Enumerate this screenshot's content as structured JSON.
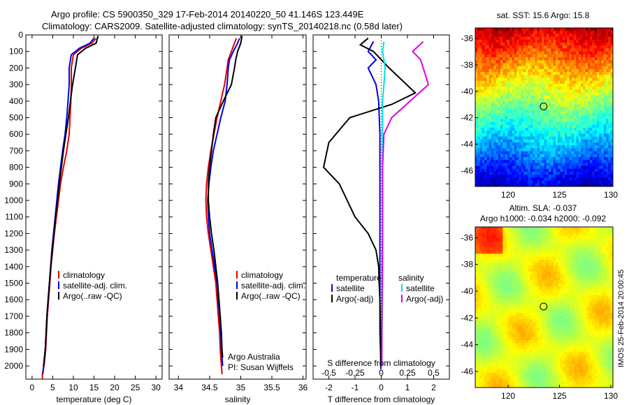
{
  "title": {
    "line1": "Argo profile: CS 5900350_329 17-Feb-2014 20140220_50 41.146S 123.449E",
    "line2": "Climatology: CARS2009. Satellite-adjusted climatology: synTS_20140218.nc (0.58d later)"
  },
  "colors": {
    "climatology": "#e00000",
    "satellite": "#0000e6",
    "argo": "#000000",
    "sal_sat": "#00e0e0",
    "sal_argo": "#e000e0"
  },
  "chart_data": [
    {
      "type": "line",
      "id": "temperature",
      "xlabel": "temperature (deg C)",
      "xlim": [
        -1.5,
        31.5
      ],
      "xticks": [
        0,
        5,
        10,
        15,
        20,
        25,
        30
      ],
      "ylim": [
        0,
        2080
      ],
      "yticks": [
        0,
        100,
        200,
        300,
        400,
        500,
        600,
        700,
        800,
        900,
        1000,
        1100,
        1200,
        1300,
        1400,
        1500,
        1600,
        1700,
        1800,
        1900,
        2000
      ],
      "legend": [
        "climatology",
        "satellite-adj. clim.",
        "Argo(..raw -QC)"
      ],
      "series": [
        {
          "name": "climatology",
          "color": "#e00000",
          "x": [
            15.5,
            14.5,
            12,
            10,
            9.5,
            9.5,
            9.4,
            9.2,
            9,
            8.4,
            7.6,
            6.9,
            6.4,
            5.9,
            5.4,
            5,
            4.6,
            4.3,
            4,
            3.7,
            3.5,
            3.3,
            3.1,
            2.9,
            2.5,
            2.5
          ],
          "y": [
            20,
            50,
            80,
            120,
            200,
            300,
            400,
            500,
            600,
            700,
            800,
            900,
            1000,
            1100,
            1200,
            1300,
            1400,
            1500,
            1600,
            1700,
            1800,
            1900,
            1950,
            2000,
            2050,
            2080
          ]
        },
        {
          "name": "satellite-adj. clim.",
          "color": "#0000e6",
          "x": [
            15,
            14,
            11.5,
            9.5,
            9,
            9,
            8.7,
            8.4,
            8,
            7.4,
            6.9,
            6.4,
            6,
            5.6,
            5.2,
            4.8,
            4.5,
            4.2,
            3.9,
            3.6,
            3.4,
            3.2,
            3,
            2.8,
            2.6
          ],
          "y": [
            20,
            50,
            80,
            120,
            200,
            300,
            400,
            500,
            600,
            700,
            800,
            900,
            1000,
            1100,
            1200,
            1300,
            1400,
            1500,
            1600,
            1700,
            1800,
            1900,
            1950,
            2000,
            2050
          ]
        },
        {
          "name": "Argo(..raw -QC)",
          "color": "#000000",
          "x": [
            16,
            15.5,
            13,
            11,
            10.5,
            9.8,
            9.3,
            8.8,
            8.2,
            7.6,
            7.1,
            6.6,
            6.2,
            5.7,
            5.3,
            4.9,
            4.5,
            4.2,
            3.9,
            3.6,
            3.4,
            3.2,
            3,
            2.8
          ],
          "y": [
            5,
            50,
            80,
            120,
            200,
            300,
            400,
            500,
            600,
            700,
            800,
            900,
            1000,
            1100,
            1200,
            1300,
            1400,
            1500,
            1600,
            1700,
            1800,
            1900,
            1950,
            2000
          ]
        }
      ]
    },
    {
      "type": "line",
      "id": "salinity",
      "xlabel": "salinity",
      "xlim": [
        33.85,
        36.05
      ],
      "xticks": [
        34,
        34.5,
        35,
        35.5,
        36
      ],
      "xtick_labels": [
        "34",
        "34.5",
        "35",
        "35.5",
        "36"
      ],
      "ylim": [
        0,
        2080
      ],
      "legend": [
        "climatology",
        "satellite-adj. clim.",
        "Argo(..raw -QC)"
      ],
      "annotation": {
        "line1": "Argo Australia",
        "line2": "PI: Susan Wijffels"
      },
      "series": [
        {
          "name": "climatology",
          "color": "#e00000",
          "x": [
            34.93,
            34.9,
            34.85,
            34.8,
            34.78,
            34.74,
            34.68,
            34.62,
            34.57,
            34.52,
            34.48,
            34.45,
            34.44,
            34.45,
            34.48,
            34.52,
            34.56,
            34.6,
            34.62,
            34.64,
            34.66,
            34.67,
            34.68,
            34.69,
            34.7
          ],
          "y": [
            20,
            50,
            100,
            150,
            200,
            300,
            400,
            500,
            600,
            700,
            800,
            900,
            1000,
            1100,
            1200,
            1300,
            1400,
            1500,
            1600,
            1700,
            1800,
            1900,
            1950,
            2000,
            2050
          ]
        },
        {
          "name": "satellite-adj. clim.",
          "color": "#0000e6",
          "x": [
            34.98,
            34.95,
            34.88,
            34.82,
            34.8,
            34.78,
            34.75,
            34.68,
            34.62,
            34.56,
            34.52,
            34.49,
            34.47,
            34.48,
            34.5,
            34.54,
            34.58,
            34.62,
            34.64,
            34.66,
            34.68,
            34.69,
            34.7,
            34.71
          ],
          "y": [
            20,
            50,
            100,
            150,
            200,
            300,
            400,
            500,
            600,
            700,
            800,
            900,
            1000,
            1100,
            1200,
            1300,
            1400,
            1500,
            1600,
            1700,
            1800,
            1900,
            1950,
            2000
          ]
        },
        {
          "name": "Argo(..raw -QC)",
          "color": "#000000",
          "x": [
            35.02,
            35,
            34.95,
            34.92,
            34.9,
            34.85,
            34.72,
            34.6,
            34.56,
            34.53,
            34.5,
            34.48,
            34.48,
            34.5,
            34.53,
            34.57,
            34.6,
            34.63,
            34.65,
            34.67,
            34.69,
            34.7,
            34.71
          ],
          "y": [
            5,
            50,
            100,
            150,
            200,
            300,
            400,
            500,
            600,
            700,
            800,
            900,
            1000,
            1100,
            1200,
            1300,
            1400,
            1500,
            1600,
            1700,
            1800,
            1900,
            1950
          ]
        }
      ]
    },
    {
      "type": "line",
      "id": "differences",
      "xlabel": "T difference from climatology",
      "xlabel2": "S difference from climatology",
      "xlim": [
        -2.6,
        2.6
      ],
      "xticks": [
        -2,
        -1,
        0,
        1,
        2
      ],
      "s_ticks": [
        -0.5,
        -0.25,
        0,
        0.25,
        0.5
      ],
      "s_tick_labels": [
        "-0.5",
        "-0.25",
        "0",
        "0.25",
        "0.5"
      ],
      "ylim": [
        0,
        2080
      ],
      "legend_left": {
        "title": "temperature",
        "items": [
          "satellite",
          "Argo(-adj)"
        ]
      },
      "legend_right": {
        "title": "salinity",
        "items": [
          "satellite",
          "Argo(-adj)"
        ]
      },
      "series": [
        {
          "name": "temperature satellite",
          "color": "#0000e6",
          "x": [
            -0.3,
            -0.5,
            -0.2,
            -0.5,
            -0.2,
            -0.1,
            -0.05,
            -0.05,
            -0.05,
            -0.05,
            -0.05,
            -0.05,
            -0.05,
            -0.05,
            -0.05,
            -0.04,
            -0.03,
            -0.02,
            -0.02,
            -0.02
          ],
          "y": [
            40,
            100,
            150,
            200,
            300,
            400,
            600,
            800,
            1000,
            1200,
            1400,
            1500,
            1600,
            1700,
            1800,
            1850,
            1900,
            1950,
            2000,
            2020
          ]
        },
        {
          "name": "temperature Argo(-adj)",
          "color": "#000000",
          "x": [
            -0.5,
            -0.8,
            -0.3,
            0.3,
            1.3,
            0.4,
            -1.2,
            -2.0,
            -2.2,
            -1.6,
            -1.3,
            -1.0,
            -0.5,
            -0.2,
            -0.1,
            -0.08,
            -0.05,
            -0.03,
            -0.02
          ],
          "y": [
            20,
            60,
            100,
            200,
            350,
            420,
            500,
            650,
            800,
            900,
            1000,
            1100,
            1200,
            1300,
            1400,
            1500,
            1600,
            1800,
            2000
          ]
        },
        {
          "name": "salinity satellite",
          "color": "#00e0e0",
          "x": [
            0.1,
            0.05,
            0.15,
            0.1,
            0.05,
            0.05,
            0.05,
            0.05,
            0.05,
            0.05,
            0.05,
            0.05,
            0.03,
            0.02
          ],
          "y": [
            40,
            100,
            200,
            300,
            400,
            600,
            800,
            1000,
            1200,
            1400,
            1500,
            1600,
            1800,
            2000
          ]
        },
        {
          "name": "salinity Argo(-adj)",
          "color": "#e000e0",
          "x": [
            1.6,
            1.2,
            1.5,
            1.8,
            1.1,
            0.4,
            0.1,
            0.05,
            0.05,
            0.03,
            0.02
          ],
          "y": [
            40,
            100,
            150,
            300,
            400,
            500,
            600,
            800,
            1200,
            1600,
            2000
          ]
        }
      ]
    },
    {
      "type": "heatmap",
      "id": "sst_map",
      "title": "sat. SST: 15.6  Argo: 15.8",
      "xticks": [
        120,
        125,
        130
      ],
      "xtick_labels": [
        "120",
        "125",
        "130"
      ],
      "yticks": [
        -36,
        -38,
        -40,
        -42,
        -44,
        -46
      ],
      "xlim": [
        116.8,
        130.2
      ],
      "ylim": [
        -47.2,
        -35.2
      ],
      "marker": {
        "lon": 123.449,
        "lat": -41.146
      }
    },
    {
      "type": "heatmap",
      "id": "sla_map",
      "title": "Altim. SLA: -0.037",
      "subtitle": "Argo h1000: -0.034 h2000: -0.092",
      "side_label": "IMOS 25-Feb-2014 20:00:45",
      "xticks": [
        120,
        125,
        130
      ],
      "xtick_labels": [
        "120",
        "125",
        "130"
      ],
      "yticks": [
        -36,
        -38,
        -40,
        -42,
        -44,
        -46
      ],
      "xlim": [
        116.8,
        130.2
      ],
      "ylim": [
        -47.2,
        -35.2
      ],
      "marker": {
        "lon": 123.449,
        "lat": -41.146
      }
    }
  ]
}
